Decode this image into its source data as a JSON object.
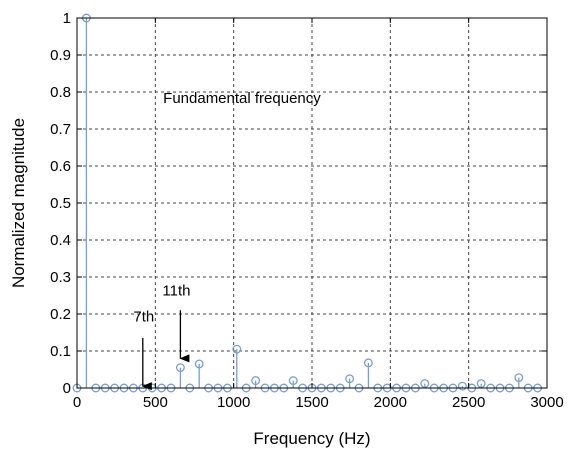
{
  "chart_data": {
    "type": "stem",
    "title": "",
    "xlabel": "Frequency (Hz)",
    "ylabel": "Normalized magnitude",
    "xlim": [
      0,
      3000
    ],
    "ylim": [
      0,
      1
    ],
    "xticks": [
      0,
      500,
      1000,
      1500,
      2000,
      2500,
      3000
    ],
    "yticks": [
      0,
      0.1,
      0.2,
      0.3,
      0.4,
      0.5,
      0.6,
      0.7,
      0.8,
      0.9,
      1
    ],
    "ytick_labels": [
      "0",
      "0.1",
      "0.2",
      "0.3",
      "0.4",
      "0.5",
      "0.6",
      "0.7",
      "0.8",
      "0.9",
      "1"
    ],
    "grid": true,
    "series": [
      {
        "color": "#7b9ed0",
        "x": [
          0,
          60,
          120,
          180,
          240,
          300,
          360,
          420,
          480,
          540,
          600,
          660,
          720,
          780,
          840,
          900,
          960,
          1020,
          1080,
          1140,
          1200,
          1260,
          1320,
          1380,
          1440,
          1500,
          1560,
          1620,
          1680,
          1740,
          1800,
          1860,
          1920,
          1980,
          2040,
          2100,
          2160,
          2220,
          2280,
          2340,
          2400,
          2460,
          2520,
          2580,
          2640,
          2700,
          2760,
          2820,
          2880,
          2940
        ],
        "y": [
          0,
          1.0,
          0,
          0,
          0,
          0,
          0,
          0,
          0,
          0,
          0,
          0.055,
          0,
          0.065,
          0,
          0,
          0,
          0.105,
          0,
          0.02,
          0,
          0,
          0,
          0.02,
          0,
          0,
          0,
          0,
          0,
          0.025,
          0,
          0.068,
          0,
          0,
          0,
          0,
          0,
          0.012,
          0,
          0,
          0,
          0.005,
          0,
          0.012,
          0,
          0,
          0,
          0.028,
          0,
          0
        ]
      }
    ],
    "annotations": [
      {
        "text": "Fundamental frequency",
        "x": 550,
        "y": 0.77
      },
      {
        "text": "7th",
        "x": 360,
        "y": 0.18,
        "arrow_to": [
          420,
          0.005
        ],
        "arrow_from": [
          420,
          0.135
        ]
      },
      {
        "text": "11th",
        "x": 545,
        "y": 0.25,
        "arrow_to": [
          660,
          0.08
        ],
        "arrow_from": [
          660,
          0.21
        ]
      }
    ]
  }
}
